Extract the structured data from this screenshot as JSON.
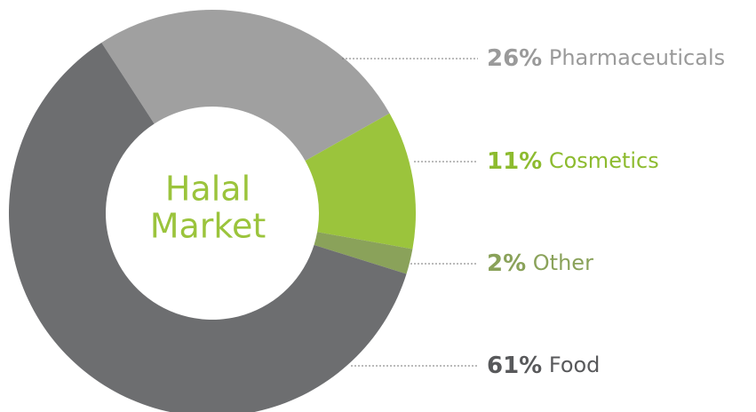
{
  "chart_data": {
    "type": "donut",
    "center_label": [
      "Halal",
      "Market"
    ],
    "center_label_color": "#9bc43c",
    "categories": [
      "Pharmaceuticals",
      "Cosmetics",
      "Other",
      "Food"
    ],
    "values": [
      26,
      11,
      2,
      61
    ],
    "value_labels": [
      "26%",
      "11%",
      "2%",
      "61%"
    ],
    "colors": [
      "#a0a0a0",
      "#9bc43c",
      "#8aa25a",
      "#6d6e70"
    ],
    "label_colors": [
      "#9a9a9a",
      "#8dbb2f",
      "#8aa25a",
      "#58595b"
    ]
  }
}
